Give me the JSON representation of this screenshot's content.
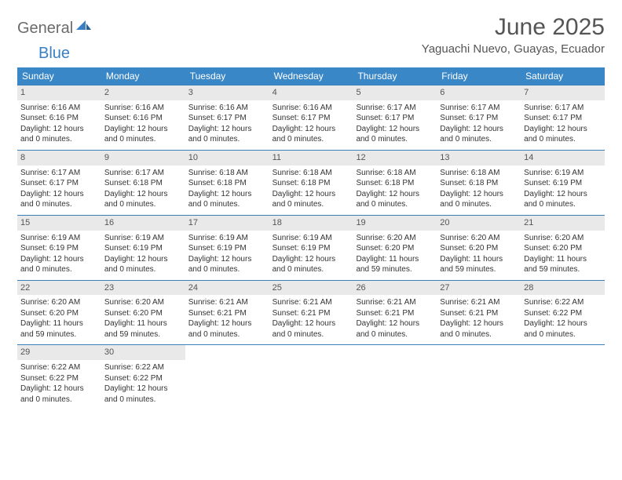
{
  "logo": {
    "part1": "General",
    "part2": "Blue"
  },
  "title": "June 2025",
  "location": "Yaguachi Nuevo, Guayas, Ecuador",
  "colors": {
    "header_bg": "#3a87c7",
    "header_text": "#ffffff",
    "daynum_bg": "#e9e9e9",
    "week_border": "#3a7fb8",
    "body_text": "#333333",
    "title_text": "#555555",
    "logo_gray": "#6b6b6b",
    "logo_blue": "#3a7fc4"
  },
  "day_names": [
    "Sunday",
    "Monday",
    "Tuesday",
    "Wednesday",
    "Thursday",
    "Friday",
    "Saturday"
  ],
  "weeks": [
    [
      {
        "n": "1",
        "sr": "6:16 AM",
        "ss": "6:16 PM",
        "dl": "12 hours and 0 minutes."
      },
      {
        "n": "2",
        "sr": "6:16 AM",
        "ss": "6:16 PM",
        "dl": "12 hours and 0 minutes."
      },
      {
        "n": "3",
        "sr": "6:16 AM",
        "ss": "6:17 PM",
        "dl": "12 hours and 0 minutes."
      },
      {
        "n": "4",
        "sr": "6:16 AM",
        "ss": "6:17 PM",
        "dl": "12 hours and 0 minutes."
      },
      {
        "n": "5",
        "sr": "6:17 AM",
        "ss": "6:17 PM",
        "dl": "12 hours and 0 minutes."
      },
      {
        "n": "6",
        "sr": "6:17 AM",
        "ss": "6:17 PM",
        "dl": "12 hours and 0 minutes."
      },
      {
        "n": "7",
        "sr": "6:17 AM",
        "ss": "6:17 PM",
        "dl": "12 hours and 0 minutes."
      }
    ],
    [
      {
        "n": "8",
        "sr": "6:17 AM",
        "ss": "6:17 PM",
        "dl": "12 hours and 0 minutes."
      },
      {
        "n": "9",
        "sr": "6:17 AM",
        "ss": "6:18 PM",
        "dl": "12 hours and 0 minutes."
      },
      {
        "n": "10",
        "sr": "6:18 AM",
        "ss": "6:18 PM",
        "dl": "12 hours and 0 minutes."
      },
      {
        "n": "11",
        "sr": "6:18 AM",
        "ss": "6:18 PM",
        "dl": "12 hours and 0 minutes."
      },
      {
        "n": "12",
        "sr": "6:18 AM",
        "ss": "6:18 PM",
        "dl": "12 hours and 0 minutes."
      },
      {
        "n": "13",
        "sr": "6:18 AM",
        "ss": "6:18 PM",
        "dl": "12 hours and 0 minutes."
      },
      {
        "n": "14",
        "sr": "6:19 AM",
        "ss": "6:19 PM",
        "dl": "12 hours and 0 minutes."
      }
    ],
    [
      {
        "n": "15",
        "sr": "6:19 AM",
        "ss": "6:19 PM",
        "dl": "12 hours and 0 minutes."
      },
      {
        "n": "16",
        "sr": "6:19 AM",
        "ss": "6:19 PM",
        "dl": "12 hours and 0 minutes."
      },
      {
        "n": "17",
        "sr": "6:19 AM",
        "ss": "6:19 PM",
        "dl": "12 hours and 0 minutes."
      },
      {
        "n": "18",
        "sr": "6:19 AM",
        "ss": "6:19 PM",
        "dl": "12 hours and 0 minutes."
      },
      {
        "n": "19",
        "sr": "6:20 AM",
        "ss": "6:20 PM",
        "dl": "11 hours and 59 minutes."
      },
      {
        "n": "20",
        "sr": "6:20 AM",
        "ss": "6:20 PM",
        "dl": "11 hours and 59 minutes."
      },
      {
        "n": "21",
        "sr": "6:20 AM",
        "ss": "6:20 PM",
        "dl": "11 hours and 59 minutes."
      }
    ],
    [
      {
        "n": "22",
        "sr": "6:20 AM",
        "ss": "6:20 PM",
        "dl": "11 hours and 59 minutes."
      },
      {
        "n": "23",
        "sr": "6:20 AM",
        "ss": "6:20 PM",
        "dl": "11 hours and 59 minutes."
      },
      {
        "n": "24",
        "sr": "6:21 AM",
        "ss": "6:21 PM",
        "dl": "12 hours and 0 minutes."
      },
      {
        "n": "25",
        "sr": "6:21 AM",
        "ss": "6:21 PM",
        "dl": "12 hours and 0 minutes."
      },
      {
        "n": "26",
        "sr": "6:21 AM",
        "ss": "6:21 PM",
        "dl": "12 hours and 0 minutes."
      },
      {
        "n": "27",
        "sr": "6:21 AM",
        "ss": "6:21 PM",
        "dl": "12 hours and 0 minutes."
      },
      {
        "n": "28",
        "sr": "6:22 AM",
        "ss": "6:22 PM",
        "dl": "12 hours and 0 minutes."
      }
    ],
    [
      {
        "n": "29",
        "sr": "6:22 AM",
        "ss": "6:22 PM",
        "dl": "12 hours and 0 minutes."
      },
      {
        "n": "30",
        "sr": "6:22 AM",
        "ss": "6:22 PM",
        "dl": "12 hours and 0 minutes."
      },
      null,
      null,
      null,
      null,
      null
    ]
  ],
  "labels": {
    "sunrise_prefix": "Sunrise: ",
    "sunset_prefix": "Sunset: ",
    "daylight_prefix": "Daylight: "
  }
}
